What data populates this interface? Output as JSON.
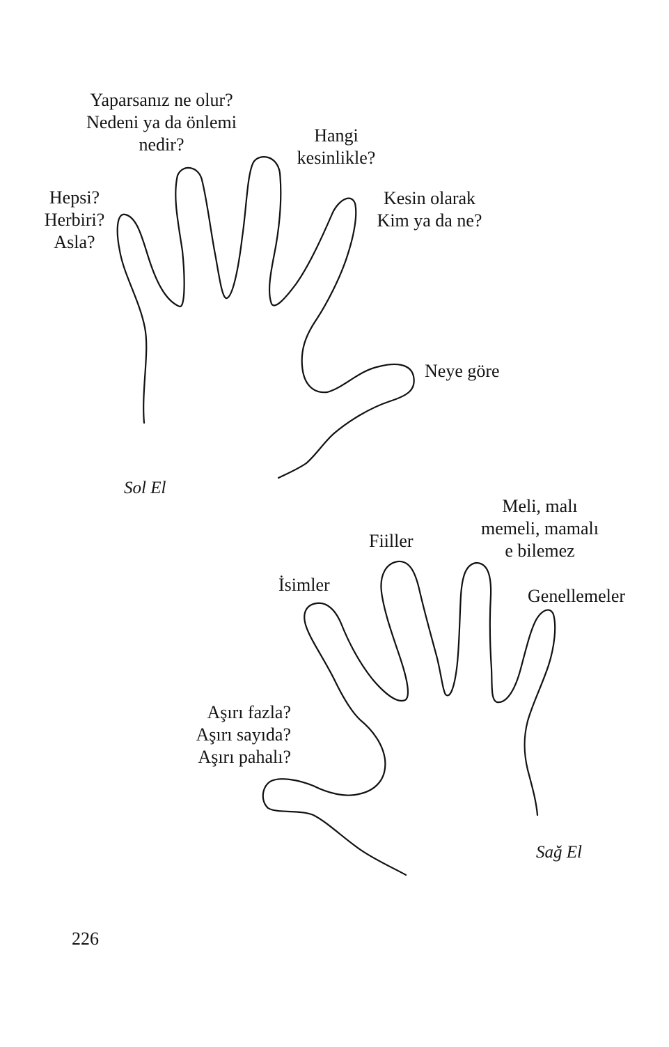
{
  "left_hand": {
    "caption": "Sol El",
    "labels": {
      "little_finger": [
        "Hepsi?",
        "Herbiri?",
        "Asla?"
      ],
      "ring_finger": [
        "Yaparsanız ne olur?",
        "Nedeni ya da önlemi",
        "nedir?"
      ],
      "middle_finger": [
        "Hangi",
        "kesinlikle?"
      ],
      "index_finger": [
        "Kesin olarak",
        "Kim ya da ne?"
      ],
      "thumb": [
        "Neye göre"
      ]
    }
  },
  "right_hand": {
    "caption": "Sağ El",
    "labels": {
      "thumb": [
        "Aşırı fazla?",
        "Aşırı sayıda?",
        "Aşırı pahalı?"
      ],
      "index_finger": [
        "İsimler"
      ],
      "middle_finger": [
        "Fiiller"
      ],
      "ring_finger": [
        "Meli, malı",
        "memeli, mamalı",
        "e bilemez"
      ],
      "little_finger": [
        "Genellemeler"
      ]
    }
  },
  "page_number": "226"
}
